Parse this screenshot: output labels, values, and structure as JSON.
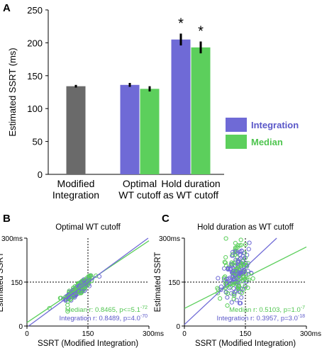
{
  "colors": {
    "gray": "#6a6a6a",
    "integration": "#6f6ad6",
    "median": "#5ccf5c",
    "integration_text": "#5a57c8",
    "median_text": "#4fc54f"
  },
  "chart_data": [
    {
      "panel": "A",
      "type": "bar",
      "ylabel": "Estimated SSRT (ms)",
      "ylim": [
        0,
        250
      ],
      "yticks": [
        "0",
        "50",
        "100",
        "150",
        "200",
        "250"
      ],
      "categories": [
        [
          "Modified",
          "Integration"
        ],
        [
          "Optimal",
          "WT cutoff"
        ],
        [
          "Hold duration",
          "as WT cutoff"
        ]
      ],
      "series": [
        {
          "name": "Integration",
          "color": "#6f6ad6"
        },
        {
          "name": "Median",
          "color": "#5ccf5c"
        }
      ],
      "bars": [
        {
          "group": 0,
          "series": "modified",
          "value": 134,
          "err": 2
        },
        {
          "group": 1,
          "series": "Integration",
          "value": 136,
          "err": 3
        },
        {
          "group": 1,
          "series": "Median",
          "value": 130,
          "err": 4
        },
        {
          "group": 2,
          "series": "Integration",
          "value": 205,
          "err": 9
        },
        {
          "group": 2,
          "series": "Median",
          "value": 193,
          "err": 9
        }
      ],
      "annotations": [
        "*",
        "*"
      ],
      "legend": [
        "Integration",
        "Median"
      ]
    },
    {
      "panel": "B",
      "type": "scatter",
      "title": "Optimal WT cutoff",
      "xlabel": "SSRT (Modified Integration)",
      "ylabel": "Estimated SSRT",
      "xlim": [
        0,
        300
      ],
      "ylim": [
        0,
        300
      ],
      "xticks": [
        "0",
        "150",
        "300ms"
      ],
      "yticks": [
        "0",
        "150",
        "300ms"
      ],
      "stats": {
        "median": {
          "prefix": "Median r: 0.8465, p<=5.1",
          "exp": "-72"
        },
        "integration": {
          "prefix": "Integration r: 0.8489, p=4.0",
          "exp": "-70"
        }
      },
      "fits": {
        "median": {
          "slope": 0.93,
          "intercept": 12
        },
        "integration": {
          "slope": 1.02,
          "intercept": -4
        }
      },
      "cloud": {
        "cx": 128,
        "cy": 130,
        "sx": 18,
        "sy": 18,
        "n": 220
      }
    },
    {
      "panel": "C",
      "type": "scatter",
      "title": "Hold duration as WT cutoff",
      "xlabel": "SSRT (Modified Integration)",
      "ylabel": "Estimated SSRT",
      "xlim": [
        0,
        300
      ],
      "ylim": [
        0,
        300
      ],
      "xticks": [
        "0",
        "150",
        "300ms"
      ],
      "yticks": [
        "0",
        "150",
        "300ms"
      ],
      "stats": {
        "median": {
          "prefix": "Median r: 0.5103, p=1.0",
          "exp": "-7"
        },
        "integration": {
          "prefix": "Integration r: 0.3957, p=3.0",
          "exp": "-18"
        }
      },
      "fits": {
        "median": {
          "slope": 0.7,
          "intercept": 60
        },
        "integration": {
          "slope": 1.3,
          "intercept": 5
        }
      },
      "cloud": {
        "cx": 128,
        "cy": 180,
        "sx": 20,
        "sy": 45,
        "n": 220
      }
    }
  ]
}
